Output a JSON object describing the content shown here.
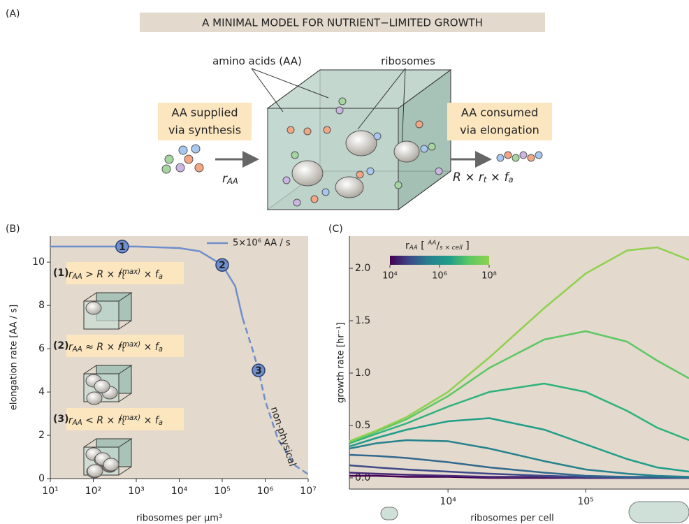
{
  "panel_a": {
    "label": "(A)",
    "title": "A MINIMAL MODEL FOR NUTRIENT−LIMITED GROWTH",
    "amino_acids": "amino acids (AA)",
    "ribosomes": "ribosomes",
    "supply": [
      "AA supplied",
      "via synthesis"
    ],
    "consume": [
      "AA consumed",
      "via elongation"
    ],
    "supply_rate": [
      {
        "text": "r"
      },
      {
        "text": "AA",
        "style": "sub"
      }
    ],
    "consume_rate": [
      {
        "text": "R × r"
      },
      {
        "text": "t",
        "style": "sub"
      },
      {
        "text": " × f"
      },
      {
        "text": "a",
        "style": "sub"
      }
    ]
  },
  "chart_data": [
    {
      "type": "line",
      "panel_label": "(B)",
      "xlabel": "ribosomes per µm³",
      "ylabel": "elongation rate [AA / s]",
      "xscale": "log",
      "xlim": [
        10,
        10000000
      ],
      "xticks": [
        {
          "value": 10,
          "label": "10¹"
        },
        {
          "value": 100,
          "label": "10²"
        },
        {
          "value": 1000,
          "label": "10³"
        },
        {
          "value": 10000,
          "label": "10⁴"
        },
        {
          "value": 100000,
          "label": "10⁵"
        },
        {
          "value": 1000000,
          "label": "10⁶"
        },
        {
          "value": 10000000,
          "label": "10⁷"
        }
      ],
      "ylim": [
        0,
        11.2
      ],
      "yticks": [
        0,
        2,
        4,
        6,
        8,
        10
      ],
      "legend": "upper right",
      "x": [
        10,
        100,
        1000,
        10000,
        30000,
        100000,
        200000,
        300000,
        500000,
        700000,
        1000000,
        2000000,
        5000000,
        10000000
      ],
      "series": [
        {
          "name": "5×10⁶ AA / s",
          "color": "#6f8fcc",
          "linestyle": "solid",
          "values": [
            10.72,
            10.72,
            10.72,
            10.65,
            10.5,
            9.87,
            8.9,
            7.4,
            null,
            null,
            null,
            null,
            null,
            null
          ]
        },
        {
          "color": "#6f8fcc",
          "linestyle": "dashed",
          "values": [
            null,
            null,
            null,
            null,
            null,
            null,
            null,
            7.4,
            6.0,
            5.0,
            3.6,
            1.8,
            0.6,
            0.2
          ]
        }
      ],
      "markers": [
        {
          "label": "1",
          "x": 470,
          "y": 10.72
        },
        {
          "label": "2",
          "x": 100000,
          "y": 9.87
        },
        {
          "label": "3",
          "x": 700000,
          "y": 5.0
        }
      ],
      "annotation": "non-physical",
      "conditions": [
        {
          "label": "(1)",
          "formula": [
            {
              "text": "r"
            },
            {
              "text": "AA",
              "style": "sub"
            },
            {
              "text": " > R × r"
            },
            {
              "text": "t",
              "style": "sub"
            },
            {
              "text": "(max)",
              "style": "sup"
            },
            {
              "text": " × f"
            },
            {
              "text": "a",
              "style": "sub"
            }
          ]
        },
        {
          "label": "(2)",
          "formula": [
            {
              "text": "r"
            },
            {
              "text": "AA",
              "style": "sub"
            },
            {
              "text": " ≈ R × r"
            },
            {
              "text": "t",
              "style": "sub"
            },
            {
              "text": "(max)",
              "style": "sup"
            },
            {
              "text": " × f"
            },
            {
              "text": "a",
              "style": "sub"
            }
          ]
        },
        {
          "label": "(3)",
          "formula": [
            {
              "text": "r"
            },
            {
              "text": "AA",
              "style": "sub"
            },
            {
              "text": " < R × r"
            },
            {
              "text": "t",
              "style": "sub"
            },
            {
              "text": "(max)",
              "style": "sup"
            },
            {
              "text": " × f"
            },
            {
              "text": "a",
              "style": "sub"
            }
          ]
        }
      ]
    },
    {
      "type": "line",
      "panel_label": "(C)",
      "xlabel": "ribosomes per cell",
      "ylabel": "growth rate [hr⁻¹]",
      "xscale": "log",
      "xlim": [
        1920,
        564000
      ],
      "xticks": [
        {
          "value": 10000,
          "label": "10⁴"
        },
        {
          "value": 100000,
          "label": "10⁵"
        }
      ],
      "ylim": [
        -0.107,
        2.307
      ],
      "yticks": [
        {
          "value": 0,
          "label": "0.0"
        },
        {
          "value": 0.5,
          "label": "0.5"
        },
        {
          "value": 1,
          "label": "1.0"
        },
        {
          "value": 1.5,
          "label": "1.5"
        },
        {
          "value": 2,
          "label": "2.0"
        }
      ],
      "x": [
        1920,
        3000,
        5000,
        10000,
        20000,
        50000,
        100000,
        200000,
        330000,
        564000
      ],
      "series": [
        {
          "color": "#440154",
          "values": [
            0.02,
            0.02,
            0.01,
            0.01,
            0,
            0,
            0,
            0,
            0,
            0
          ]
        },
        {
          "color": "#482878",
          "values": [
            0.05,
            0.04,
            0.03,
            0.02,
            0.01,
            0.01,
            0,
            0,
            0,
            0
          ]
        },
        {
          "color": "#3e4a89",
          "values": [
            0.12,
            0.1,
            0.08,
            0.06,
            0.04,
            0.02,
            0.01,
            0,
            0,
            0
          ]
        },
        {
          "color": "#31688e",
          "values": [
            0.22,
            0.21,
            0.19,
            0.15,
            0.1,
            0.05,
            0.02,
            0.01,
            0.01,
            0
          ]
        },
        {
          "color": "#26828e",
          "values": [
            0.28,
            0.33,
            0.36,
            0.35,
            0.28,
            0.16,
            0.08,
            0.04,
            0.02,
            0.01
          ]
        },
        {
          "color": "#1f9e89",
          "values": [
            0.3,
            0.38,
            0.46,
            0.54,
            0.57,
            0.46,
            0.32,
            0.18,
            0.1,
            0.06
          ]
        },
        {
          "color": "#2db27d",
          "values": [
            0.33,
            0.42,
            0.52,
            0.68,
            0.82,
            0.9,
            0.82,
            0.64,
            0.48,
            0.36
          ]
        },
        {
          "color": "#5cc863",
          "values": [
            0.34,
            0.44,
            0.56,
            0.78,
            1.05,
            1.32,
            1.4,
            1.3,
            1.12,
            0.95
          ]
        },
        {
          "color": "#8fd14f",
          "values": [
            0.35,
            0.45,
            0.58,
            0.82,
            1.15,
            1.62,
            1.95,
            2.17,
            2.2,
            2.08
          ]
        }
      ],
      "colorbar": {
        "title": [
          {
            "text": "r"
          },
          {
            "text": "AA",
            "style": "sub"
          },
          {
            "text": " [ "
          },
          {
            "text": "AA",
            "style": "sup"
          },
          {
            "text": "/"
          },
          {
            "text": "s × cell",
            "style": "sub"
          },
          {
            "text": " ]"
          }
        ],
        "scale": "log",
        "lim": [
          10000,
          100000000
        ],
        "colors": [
          "#440154",
          "#3e4a89",
          "#26828e",
          "#1f9e89",
          "#5cc863",
          "#8fd14f"
        ],
        "ticks": [
          {
            "value": 10000,
            "label": "10⁴"
          },
          {
            "value": 1000000,
            "label": "10⁶"
          },
          {
            "value": 100000000,
            "label": "10⁸"
          }
        ]
      }
    }
  ]
}
